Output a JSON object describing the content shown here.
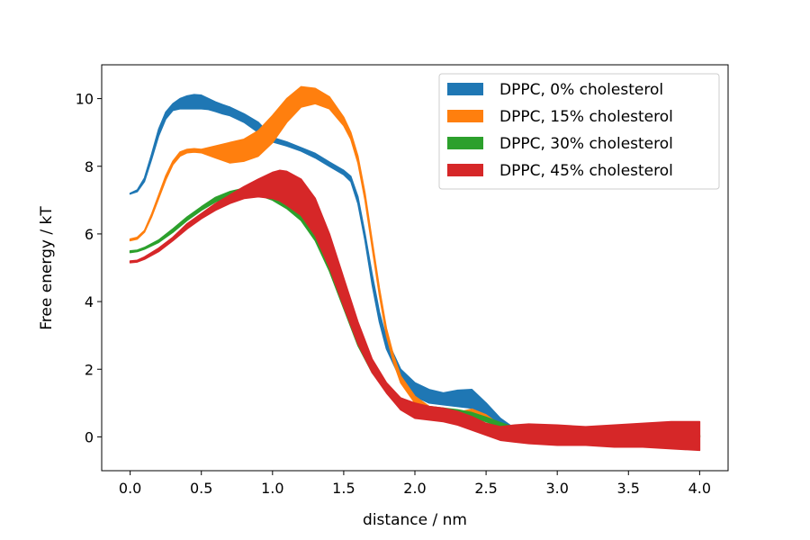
{
  "chart_data": {
    "type": "area",
    "xlabel": "distance / nm",
    "ylabel": "Free energy / kT",
    "xlim": [
      -0.2,
      4.2
    ],
    "ylim": [
      -1.0,
      11.0
    ],
    "xticks": [
      0.0,
      0.5,
      1.0,
      1.5,
      2.0,
      2.5,
      3.0,
      3.5,
      4.0
    ],
    "xtick_labels": [
      "0.0",
      "0.5",
      "1.0",
      "1.5",
      "2.0",
      "2.5",
      "3.0",
      "3.5",
      "4.0"
    ],
    "yticks": [
      0,
      2,
      4,
      6,
      8,
      10
    ],
    "ytick_labels": [
      "0",
      "2",
      "4",
      "6",
      "8",
      "10"
    ],
    "grid": false,
    "legend_position": "top-right",
    "series": [
      {
        "name": "DPPC, 0% cholesterol",
        "color": "#1f77b4",
        "x": [
          0.0,
          0.05,
          0.1,
          0.15,
          0.2,
          0.25,
          0.3,
          0.35,
          0.4,
          0.45,
          0.5,
          0.55,
          0.6,
          0.65,
          0.7,
          0.8,
          0.9,
          1.0,
          1.1,
          1.2,
          1.3,
          1.4,
          1.5,
          1.55,
          1.6,
          1.65,
          1.7,
          1.75,
          1.8,
          1.9,
          2.0,
          2.1,
          2.2,
          2.3,
          2.4,
          2.5,
          2.6,
          2.7,
          2.8,
          3.0,
          3.2,
          3.4,
          3.6,
          3.8,
          4.0
        ],
        "lower": [
          7.18,
          7.25,
          7.55,
          8.2,
          8.9,
          9.4,
          9.65,
          9.7,
          9.7,
          9.7,
          9.7,
          9.68,
          9.62,
          9.55,
          9.5,
          9.3,
          9.0,
          8.72,
          8.6,
          8.45,
          8.25,
          8.0,
          7.75,
          7.55,
          6.9,
          5.8,
          4.5,
          3.4,
          2.6,
          1.7,
          1.2,
          1.0,
          0.95,
          0.9,
          0.85,
          0.6,
          0.3,
          0.1,
          0.05,
          -0.05,
          -0.1,
          -0.1,
          -0.05,
          -0.05,
          0.0
        ],
        "upper": [
          7.2,
          7.3,
          7.65,
          8.35,
          9.1,
          9.6,
          9.85,
          10.0,
          10.08,
          10.12,
          10.1,
          10.0,
          9.9,
          9.82,
          9.75,
          9.55,
          9.3,
          8.85,
          8.72,
          8.55,
          8.38,
          8.12,
          7.88,
          7.7,
          7.1,
          6.0,
          4.8,
          3.7,
          2.9,
          2.0,
          1.6,
          1.4,
          1.3,
          1.38,
          1.4,
          1.0,
          0.55,
          0.25,
          0.15,
          0.05,
          0.0,
          0.0,
          0.0,
          0.0,
          0.0
        ]
      },
      {
        "name": "DPPC, 15% cholesterol",
        "color": "#ff7f0e",
        "x": [
          0.0,
          0.05,
          0.1,
          0.15,
          0.2,
          0.25,
          0.3,
          0.35,
          0.4,
          0.45,
          0.5,
          0.6,
          0.7,
          0.8,
          0.9,
          1.0,
          1.1,
          1.2,
          1.3,
          1.4,
          1.5,
          1.55,
          1.6,
          1.65,
          1.7,
          1.75,
          1.8,
          1.85,
          1.9,
          2.0,
          2.1,
          2.2,
          2.3,
          2.4,
          2.5,
          2.6,
          2.7,
          2.8,
          3.0,
          3.2,
          3.4,
          3.6,
          3.8,
          4.0
        ],
        "lower": [
          5.8,
          5.85,
          6.05,
          6.5,
          7.05,
          7.6,
          8.05,
          8.3,
          8.4,
          8.42,
          8.4,
          8.25,
          8.1,
          8.15,
          8.3,
          8.7,
          9.3,
          9.75,
          9.85,
          9.7,
          9.2,
          8.8,
          8.1,
          7.0,
          5.6,
          4.2,
          3.0,
          2.2,
          1.6,
          1.0,
          0.75,
          0.62,
          0.6,
          0.65,
          0.5,
          0.25,
          0.12,
          0.1,
          0.05,
          -0.1,
          0.0,
          0.02,
          0.0,
          0.0
        ],
        "upper": [
          5.85,
          5.9,
          6.1,
          6.58,
          7.15,
          7.72,
          8.15,
          8.42,
          8.5,
          8.52,
          8.5,
          8.6,
          8.7,
          8.8,
          9.05,
          9.5,
          10.0,
          10.35,
          10.3,
          10.05,
          9.45,
          9.0,
          8.3,
          7.2,
          5.8,
          4.4,
          3.2,
          2.4,
          1.8,
          1.2,
          0.9,
          0.75,
          0.72,
          0.82,
          0.65,
          0.35,
          0.2,
          0.15,
          0.1,
          -0.05,
          0.05,
          0.08,
          0.05,
          0.02
        ]
      },
      {
        "name": "DPPC, 30% cholesterol",
        "color": "#2ca02c",
        "x": [
          0.0,
          0.05,
          0.1,
          0.2,
          0.3,
          0.4,
          0.5,
          0.6,
          0.7,
          0.8,
          0.9,
          1.0,
          1.1,
          1.2,
          1.3,
          1.4,
          1.5,
          1.6,
          1.7,
          1.8,
          1.9,
          2.0,
          2.1,
          2.2,
          2.3,
          2.4,
          2.5,
          2.6,
          2.7,
          2.8,
          3.0,
          3.2,
          3.4,
          3.6,
          3.8,
          4.0
        ],
        "lower": [
          5.45,
          5.48,
          5.55,
          5.75,
          6.05,
          6.4,
          6.7,
          6.95,
          7.1,
          7.2,
          7.15,
          7.0,
          6.75,
          6.4,
          5.8,
          4.9,
          3.8,
          2.7,
          1.9,
          1.35,
          1.0,
          0.85,
          0.8,
          0.75,
          0.7,
          0.6,
          0.45,
          0.3,
          0.18,
          0.1,
          0.05,
          -0.02,
          -0.05,
          -0.05,
          -0.02,
          0.0
        ],
        "upper": [
          5.5,
          5.52,
          5.6,
          5.82,
          6.15,
          6.5,
          6.8,
          7.08,
          7.25,
          7.35,
          7.42,
          7.35,
          7.1,
          6.7,
          6.05,
          5.1,
          4.0,
          2.9,
          2.05,
          1.5,
          1.15,
          0.98,
          0.9,
          0.85,
          0.8,
          0.72,
          0.58,
          0.42,
          0.28,
          0.2,
          0.12,
          0.05,
          0.02,
          0.02,
          0.05,
          0.05
        ]
      },
      {
        "name": "DPPC, 45% cholesterol",
        "color": "#d62728",
        "x": [
          0.0,
          0.05,
          0.1,
          0.2,
          0.3,
          0.4,
          0.5,
          0.6,
          0.7,
          0.8,
          0.9,
          1.0,
          1.05,
          1.1,
          1.2,
          1.3,
          1.4,
          1.5,
          1.6,
          1.7,
          1.8,
          1.9,
          2.0,
          2.1,
          2.2,
          2.3,
          2.4,
          2.5,
          2.6,
          2.7,
          2.8,
          3.0,
          3.2,
          3.4,
          3.6,
          3.8,
          4.0
        ],
        "lower": [
          5.15,
          5.17,
          5.25,
          5.48,
          5.8,
          6.15,
          6.45,
          6.7,
          6.9,
          7.05,
          7.1,
          7.05,
          6.98,
          6.85,
          6.55,
          5.95,
          5.0,
          3.85,
          2.75,
          1.9,
          1.3,
          0.8,
          0.55,
          0.5,
          0.45,
          0.35,
          0.2,
          0.05,
          -0.1,
          -0.15,
          -0.2,
          -0.25,
          -0.25,
          -0.3,
          -0.3,
          -0.35,
          -0.4
        ],
        "upper": [
          5.2,
          5.22,
          5.32,
          5.58,
          5.9,
          6.3,
          6.6,
          6.9,
          7.15,
          7.4,
          7.62,
          7.82,
          7.88,
          7.85,
          7.62,
          7.05,
          6.0,
          4.7,
          3.4,
          2.3,
          1.6,
          1.15,
          1.0,
          0.9,
          0.85,
          0.75,
          0.6,
          0.4,
          0.3,
          0.35,
          0.38,
          0.35,
          0.3,
          0.35,
          0.4,
          0.45,
          0.45
        ]
      }
    ]
  }
}
